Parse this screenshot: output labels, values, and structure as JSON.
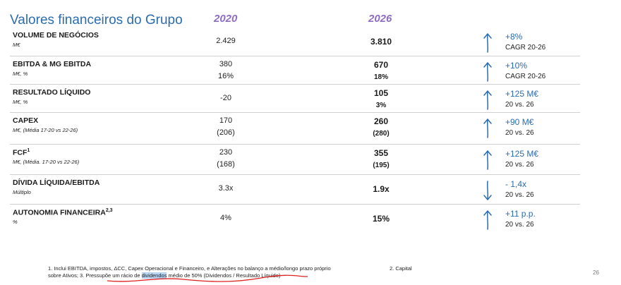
{
  "header": {
    "title": "Valores financeiros do Grupo",
    "year_a": "2020",
    "year_b": "2026"
  },
  "rows": [
    {
      "label": "VOLUME DE NEGÓCIOS",
      "sup": "",
      "unit": "M€",
      "v2020": "2.429",
      "v2020_l2": "",
      "v2026": "3.810",
      "v2026_l2": "",
      "direction": "up",
      "change": "+8%",
      "compare": "CAGR 20-26"
    },
    {
      "label": "EBITDA & MG EBITDA",
      "sup": "",
      "unit": "M€, %",
      "v2020": "380",
      "v2020_l2": "16%",
      "v2026": "670",
      "v2026_l2": "18%",
      "direction": "up",
      "change": "+10%",
      "compare": "CAGR 20-26"
    },
    {
      "label": "RESULTADO LÍQUIDO",
      "sup": "",
      "unit": "M€, %",
      "v2020": "-20",
      "v2020_l2": "",
      "v2026": "105",
      "v2026_l2": "3%",
      "direction": "up",
      "change": "+125 M€",
      "compare": "20 vs. 26"
    },
    {
      "label": "CAPEX",
      "sup": "",
      "unit": "M€, (Média 17-20 vs 22-26)",
      "v2020": "170",
      "v2020_l2": "(206)",
      "v2026": "260",
      "v2026_l2": "(280)",
      "direction": "up",
      "change": "+90 M€",
      "compare": "20 vs. 26"
    },
    {
      "label": "FCF",
      "sup": "1",
      "unit": "M€, (Média. 17-20 vs 22-26)",
      "v2020": "230",
      "v2020_l2": "(168)",
      "v2026": "355",
      "v2026_l2": "(195)",
      "direction": "up",
      "change": "+125 M€",
      "compare": "20 vs. 26"
    },
    {
      "label": "DÍVIDA LÍQUIDA/EBITDA",
      "sup": "",
      "unit": "Múltiplo",
      "v2020": "3.3x",
      "v2020_l2": "",
      "v2026": "1.9x",
      "v2026_l2": "",
      "direction": "down",
      "change": "- 1,4x",
      "compare": "20 vs. 26"
    },
    {
      "label": "AUTONOMIA FINANCEIRA",
      "sup": "2,3",
      "unit": "%",
      "v2020": "4%",
      "v2020_l2": "",
      "v2026": "15%",
      "v2026_l2": "",
      "direction": "up",
      "change": "+11 p.p.",
      "compare": "20 vs. 26"
    }
  ],
  "footnotes": {
    "note1_a": "1. Inclui EBITDA, impostos, ΔCC, Capex Operacional e Financeiro, e Alterações no balanço a médio/longo prazo próprio sobre Ativos; 3. Pressupõe um rácio de ",
    "note1_highlight": "dividendos",
    "note1_b": " médio de 50% (Dividendos / Resultado Líquido)",
    "note2": "2. Capital"
  },
  "page_number": "26",
  "colors": {
    "title": "#2b6cb0",
    "year": "#8e6cc4",
    "change": "#2b6cb0",
    "annotation": "#e02020"
  }
}
